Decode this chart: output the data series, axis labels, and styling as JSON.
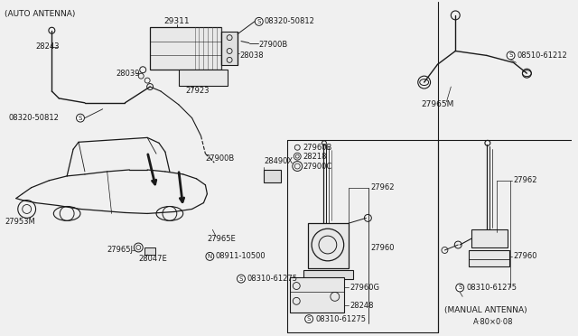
{
  "bg_color": "#f0f0f0",
  "line_color": "#1a1a1a",
  "text_color": "#1a1a1a",
  "figsize": [
    6.4,
    3.72
  ],
  "dpi": 100,
  "labels": {
    "auto_antenna": "(AUTO ANTENNA)",
    "manual_antenna": "(MANUAL ANTENNA)",
    "part_code": "A·80×0·08",
    "29311": "29311",
    "28243": "28243",
    "28039": "28039",
    "28038": "28038",
    "27923": "27923",
    "27900B": "27900B",
    "08320_50812": "08320-50812",
    "27965M": "27965M",
    "08510_61212": "08510-61212",
    "27960B": "27960B",
    "28218": "28218",
    "27900C": "27900C",
    "27962": "27962",
    "27960": "27960",
    "27960G": "27960G",
    "28248": "28248",
    "08310_61275": "08310-61275",
    "28490X": "28490X",
    "27965E": "27965E",
    "27965J": "27965J",
    "28047E": "28047E",
    "27953M": "27953M",
    "08911_10500": "08911-10500"
  }
}
